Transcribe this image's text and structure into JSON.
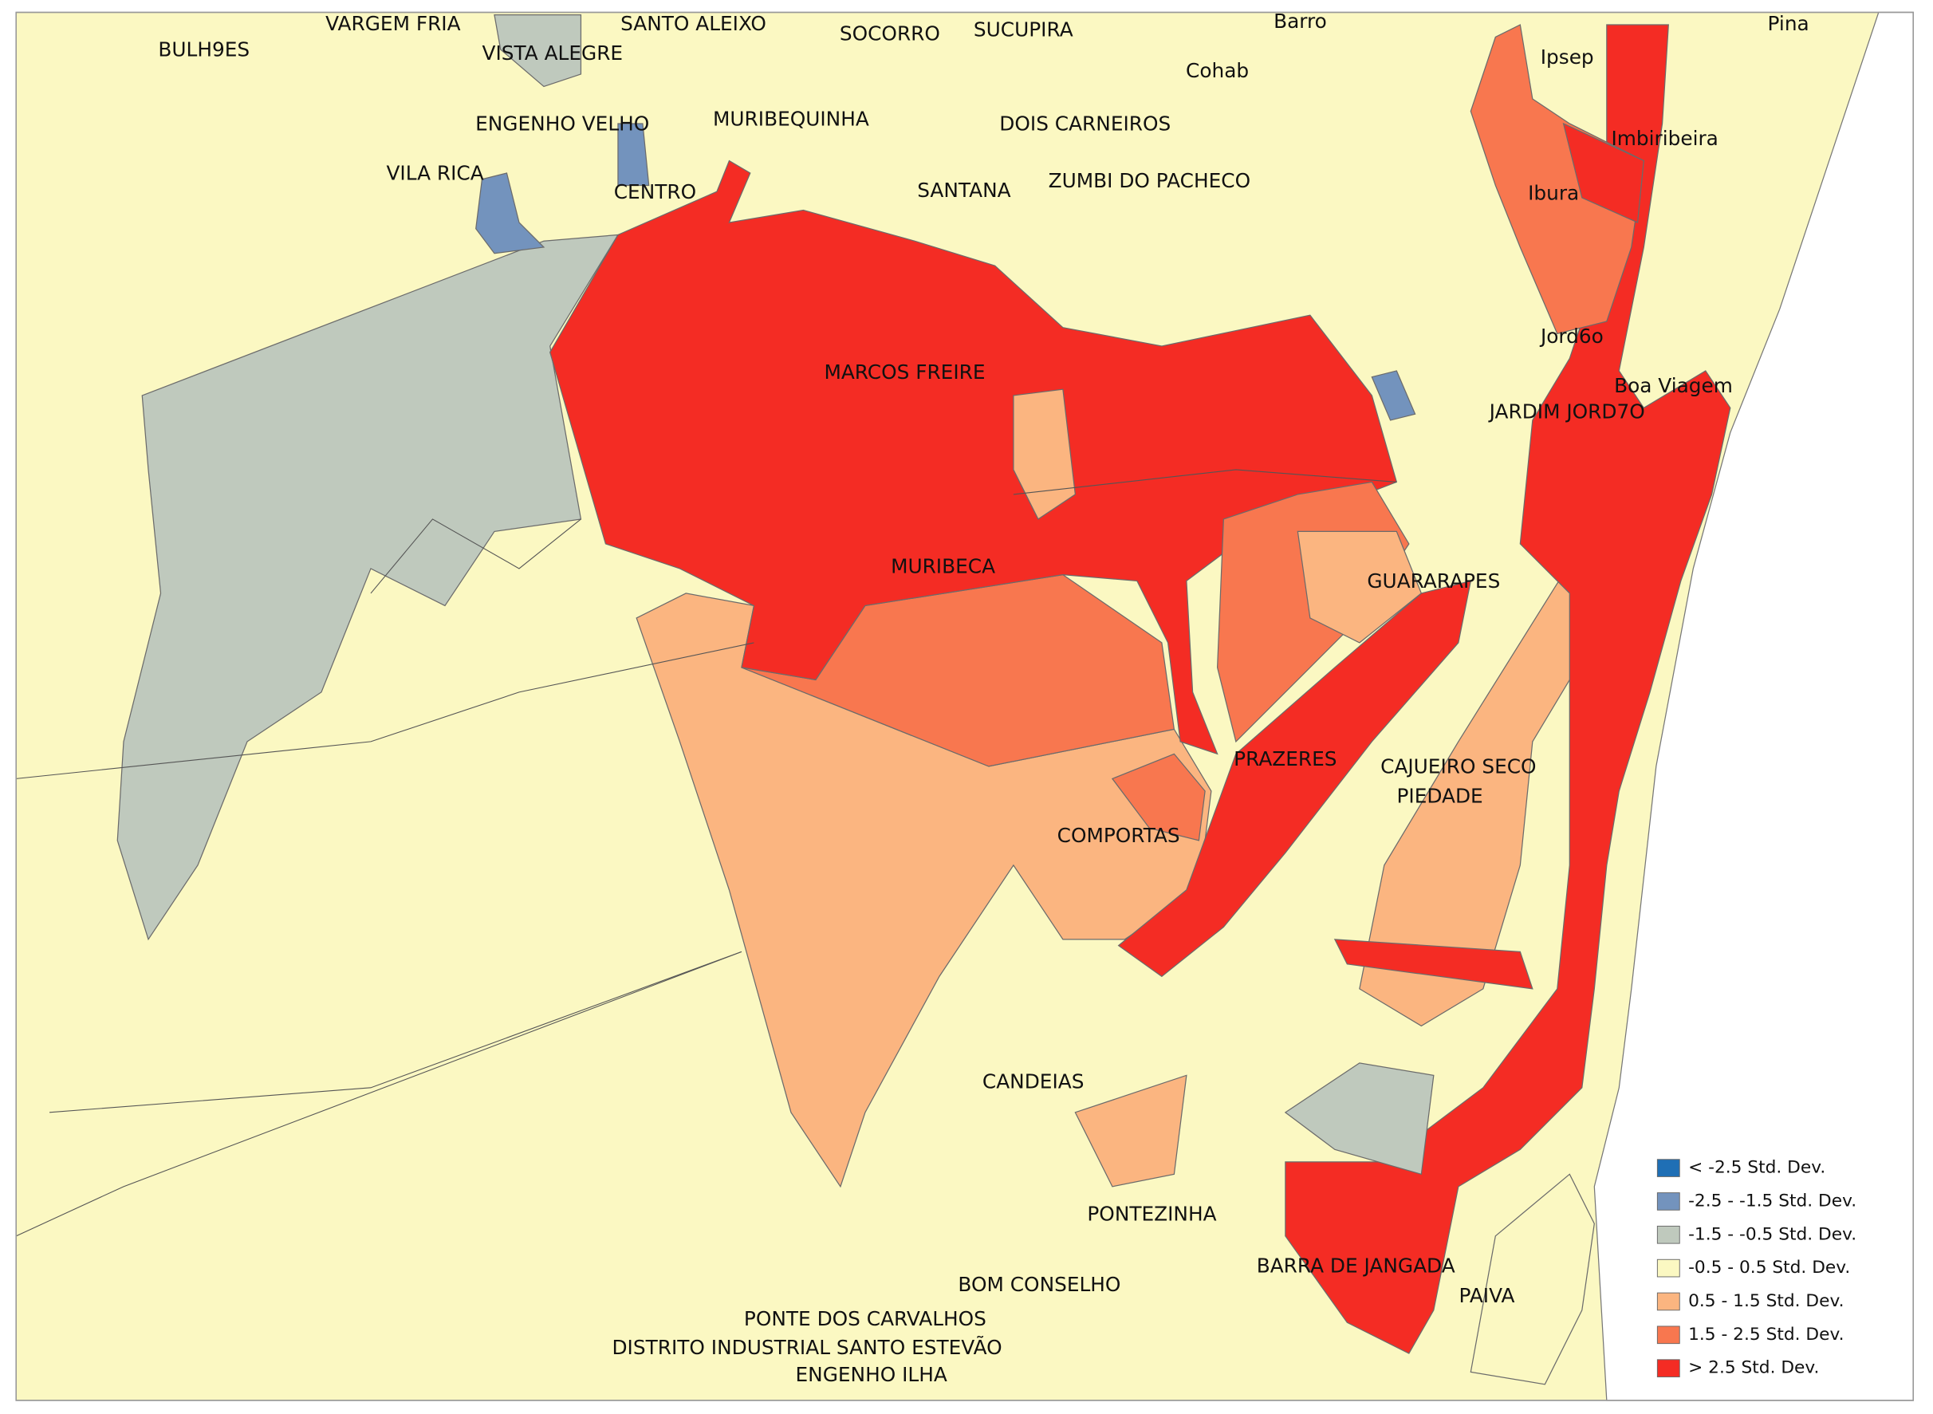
{
  "labels": [
    "BULH9ES",
    "VARGEM FRIA",
    "SANTO ALEIXO",
    "VISTA ALEGRE",
    "SOCORRO",
    "SUCUPIRA",
    "Barro",
    "Pina",
    "Ipsep",
    "Cohab",
    "ENGENHO VELHO",
    "MURIBEQUINHA",
    "DOIS CARNEIROS",
    "Imbiribeira",
    "VILA RICA",
    "CENTRO",
    "SANTANA",
    "ZUMBI DO PACHECO",
    "Ibura",
    "Jord6o",
    "Boa Viagem",
    "MARCOS FREIRE",
    "JARDIM JORD7O",
    "MURIBECA",
    "GUARARAPES",
    "PRAZERES",
    "CAJUEIRO SECO",
    "PIEDADE",
    "COMPORTAS",
    "CANDEIAS",
    "PONTEZINHA",
    "BARRA DE JANGADA",
    "PAIVA",
    "BOM CONSELHO",
    "PONTE DOS CARVALHOS",
    "DISTRITO INDUSTRIAL SANTO ESTEVÃO",
    "ENGENHO ILHA"
  ],
  "legend": {
    "items": [
      {
        "label": "< -2.5 Std. Dev.",
        "color": "#1f6fb5"
      },
      {
        "label": "-2.5 - -1.5 Std. Dev.",
        "color": "#7393bd"
      },
      {
        "label": "-1.5 - -0.5 Std. Dev.",
        "color": "#bfc9bd"
      },
      {
        "label": "-0.5 - 0.5 Std. Dev.",
        "color": "#fbf8c2"
      },
      {
        "label": "0.5 - 1.5 Std. Dev.",
        "color": "#fbb580"
      },
      {
        "label": "1.5 - 2.5 Std. Dev.",
        "color": "#f8774f"
      },
      {
        "label": "> 2.5 Std. Dev.",
        "color": "#f42c24"
      }
    ]
  }
}
